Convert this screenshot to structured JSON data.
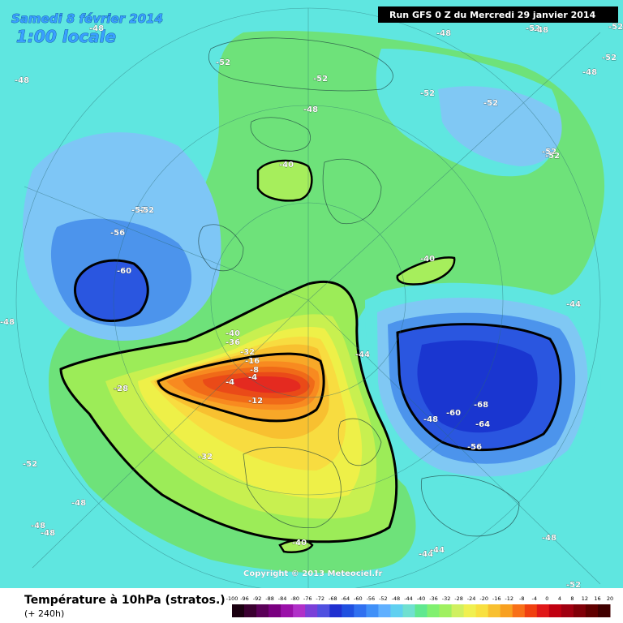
{
  "header": {
    "date_line": "Samedi 8 février 2014",
    "time_line": "1:00 locale",
    "run_line": "Run GFS 0 Z du Mercredi 29 janvier 2014"
  },
  "map": {
    "copyright": "Copyright © 2013 Meteociel.fr",
    "labels": [
      "-48",
      "-48",
      "-48",
      "-52",
      "-52",
      "-48",
      "-52",
      "-52",
      "-52",
      "-52",
      "-52",
      "-52",
      "-40",
      "-40",
      "-56",
      "-60",
      "-52",
      "-40",
      "-36",
      "-32",
      "-28",
      "-16",
      "-8",
      "-4",
      "-4",
      "-12",
      "-28",
      "-44",
      "-44",
      "-68",
      "-60",
      "-64",
      "-56",
      "-48",
      "-52",
      "-32",
      "-48",
      "-48",
      "-48",
      "-40",
      "-44",
      "-44",
      "-48",
      "-52",
      "-48",
      "-48",
      "-48",
      "-52",
      "-52"
    ]
  },
  "legend": {
    "title": "Température à 10hPa (stratos.)",
    "subtitle": "(+ 240h)",
    "ticks": [
      "-100",
      "-96",
      "-92",
      "-88",
      "-84",
      "-80",
      "-76",
      "-72",
      "-68",
      "-64",
      "-60",
      "-56",
      "-52",
      "-48",
      "-44",
      "-40",
      "-36",
      "-32",
      "-28",
      "-24",
      "-20",
      "-16",
      "-12",
      "-8",
      "-4",
      "0",
      "4",
      "8",
      "12",
      "16",
      "20"
    ],
    "colors": [
      "#1a0010",
      "#3a0030",
      "#5a0058",
      "#7a0080",
      "#9a10a8",
      "#b030c8",
      "#7a40d8",
      "#5050e0",
      "#2030d0",
      "#2050e0",
      "#3070f0",
      "#4090f8",
      "#60b0ff",
      "#60d0f0",
      "#70e0d0",
      "#60e890",
      "#80f070",
      "#a0f060",
      "#d0f060",
      "#f0f050",
      "#f8e040",
      "#f8c030",
      "#f8a020",
      "#f87018",
      "#f04010",
      "#e01818",
      "#c00010",
      "#a00010",
      "#800008",
      "#600000",
      "#400000"
    ]
  }
}
